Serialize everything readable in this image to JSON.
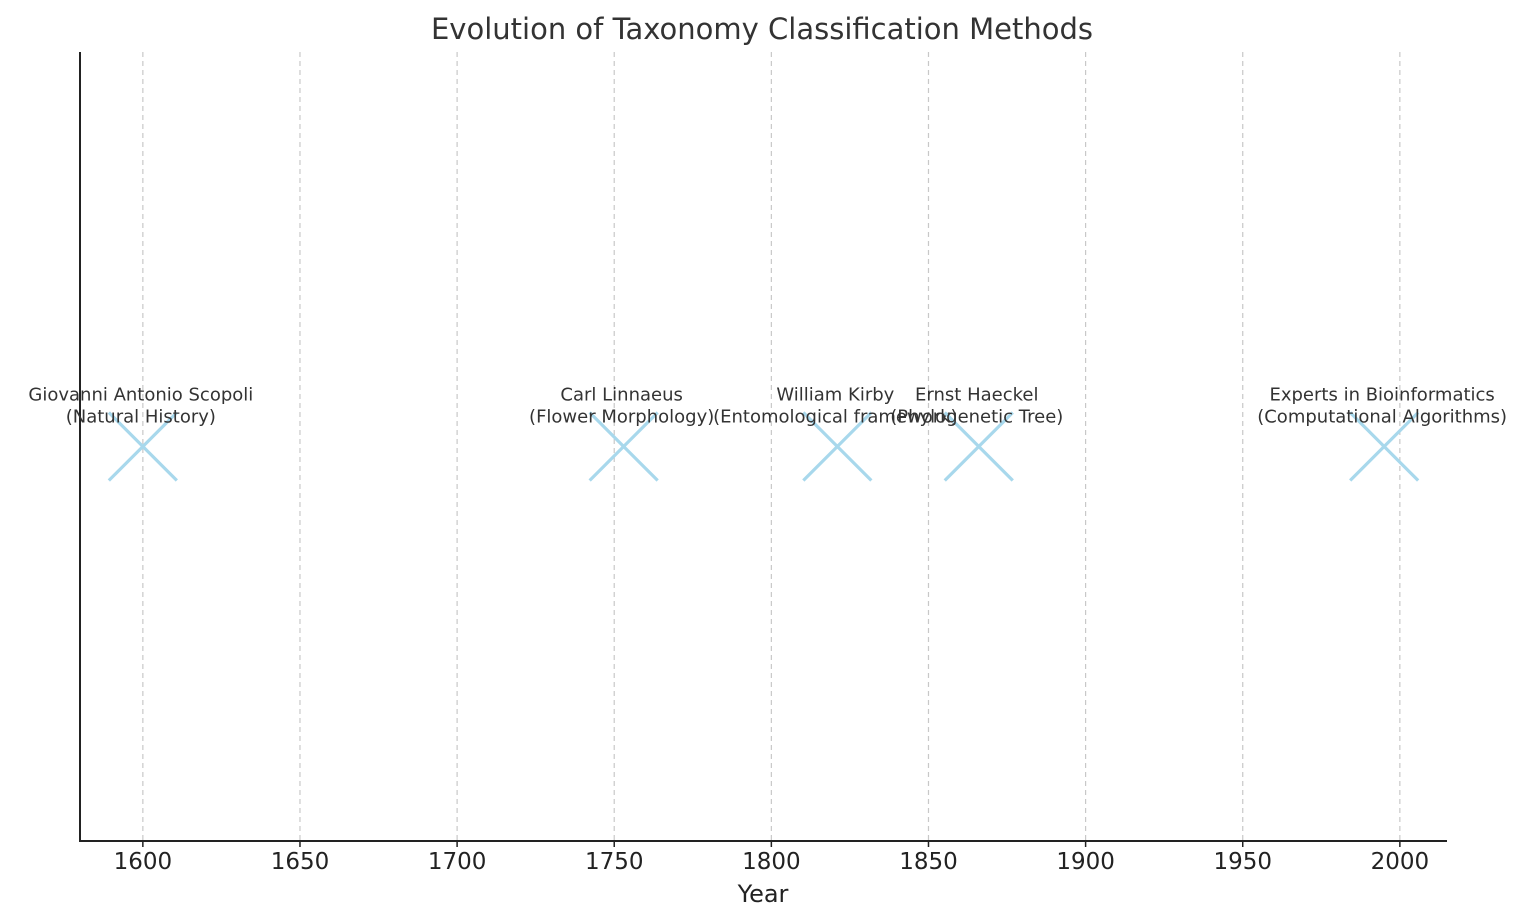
{
  "chart_data": {
    "type": "scatter",
    "title": "Evolution of Taxonomy Classification Methods",
    "xlabel": "Year",
    "ylabel": "",
    "xlim": [
      1580,
      2015
    ],
    "ylim": [
      0,
      2
    ],
    "grid": {
      "x": true,
      "y": false,
      "style": "dashed"
    },
    "marker": "x",
    "marker_color": "#a8d8ec",
    "x_ticks": [
      1600,
      1650,
      1700,
      1750,
      1800,
      1850,
      1900,
      1950,
      2000
    ],
    "points": [
      {
        "x": 1600,
        "y": 1,
        "label": "Giovanni Antonio Scopoli",
        "sublabel": "(Natural History)"
      },
      {
        "x": 1753,
        "y": 1,
        "label": "Carl Linnaeus",
        "sublabel": "(Flower Morphology)"
      },
      {
        "x": 1821,
        "y": 1,
        "label": "William Kirby",
        "sublabel": "(Entomological framework)"
      },
      {
        "x": 1866,
        "y": 1,
        "label": "Ernst Haeckel",
        "sublabel": "(Phylogenetic Tree)"
      },
      {
        "x": 1995,
        "y": 1,
        "label": "Experts in Bioinformatics",
        "sublabel": "(Computational Algorithms)"
      }
    ]
  }
}
